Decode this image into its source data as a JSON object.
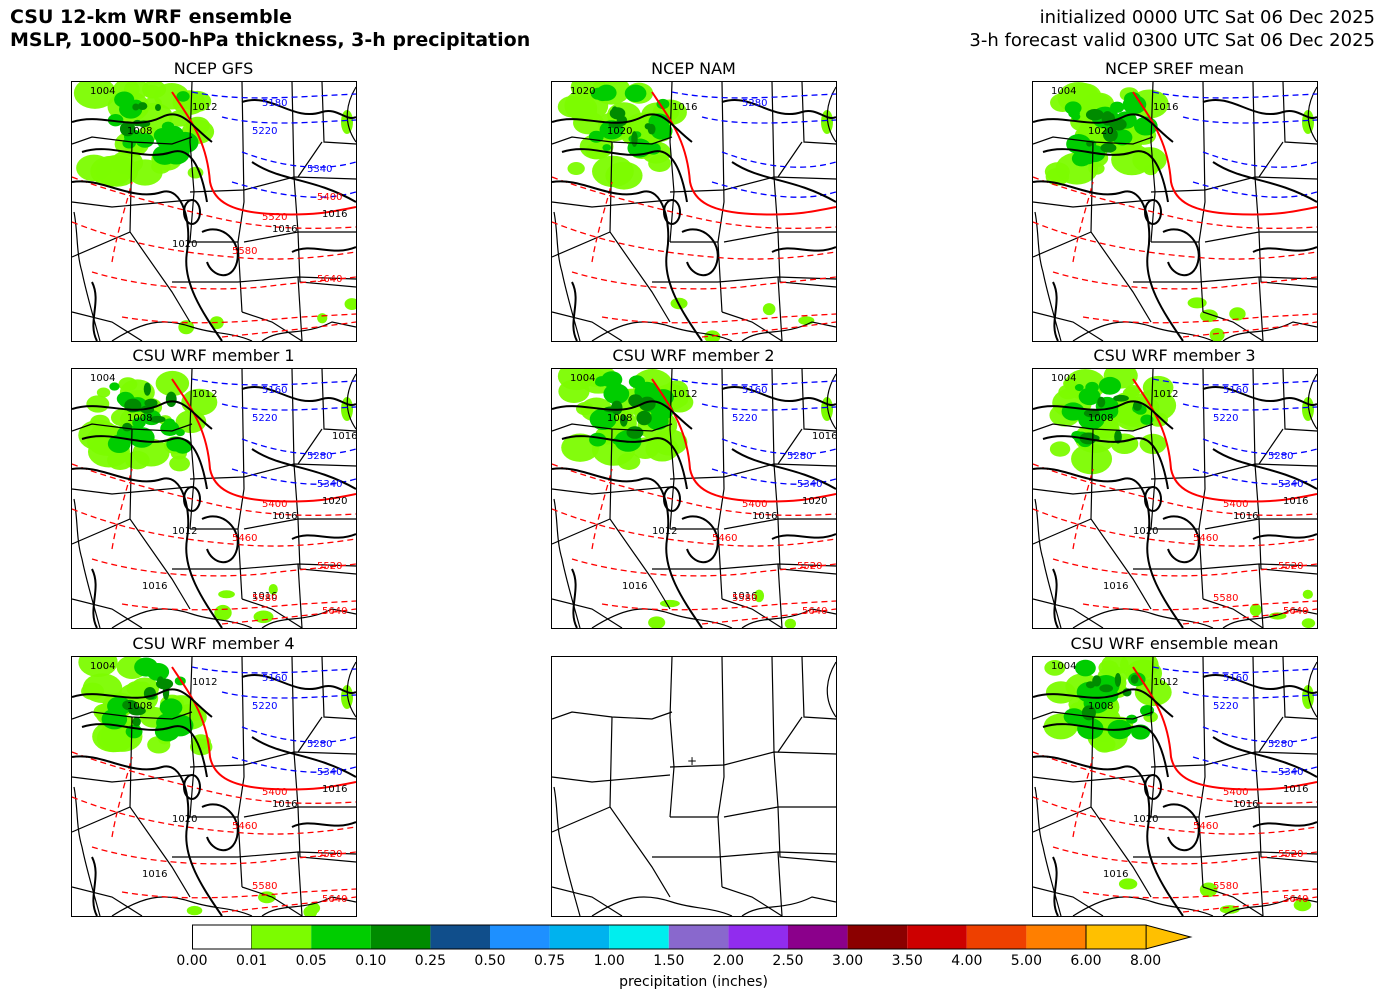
{
  "header": {
    "title_line1": "CSU 12-km WRF ensemble",
    "title_line2": "MSLP, 1000–500-hPa thickness, 3-h precipitation",
    "init_line": "initialized 0000 UTC Sat 06 Dec 2025",
    "valid_line": "3-h forecast valid 0300 UTC Sat 06 Dec 2025"
  },
  "panels": [
    {
      "title": "NCEP GFS",
      "mslp_labels": [
        "1004",
        "1008",
        "1012",
        "1016",
        "1020",
        "1016"
      ],
      "thickness_labels": [
        "5180",
        "5220",
        "5340",
        "5400",
        "5520",
        "5580",
        "5640"
      ]
    },
    {
      "title": "NCEP NAM",
      "mslp_labels": [
        "1020",
        "1020",
        "1016"
      ],
      "thickness_labels": [
        "5280"
      ]
    },
    {
      "title": "NCEP SREF mean",
      "mslp_labels": [
        "1004",
        "1020",
        "1016"
      ],
      "thickness_labels": []
    },
    {
      "title": "CSU WRF member 1",
      "mslp_labels": [
        "1004",
        "1008",
        "1012",
        "1016",
        "1012",
        "1020",
        "1016",
        "1016",
        "1016"
      ],
      "thickness_labels": [
        "5160",
        "5220",
        "5280",
        "5340",
        "5400",
        "5460",
        "5520",
        "5580",
        "5640"
      ]
    },
    {
      "title": "CSU WRF member 2",
      "mslp_labels": [
        "1004",
        "1008",
        "1012",
        "1016",
        "1012",
        "1020",
        "1016",
        "1016",
        "1016"
      ],
      "thickness_labels": [
        "5160",
        "5220",
        "5280",
        "5340",
        "5400",
        "5460",
        "5520",
        "5580",
        "5640"
      ]
    },
    {
      "title": "CSU WRF member 3",
      "mslp_labels": [
        "1004",
        "1008",
        "1012",
        "1016",
        "1020",
        "1016",
        "1016"
      ],
      "thickness_labels": [
        "5160",
        "5220",
        "5280",
        "5340",
        "5400",
        "5460",
        "5520",
        "5580",
        "5640"
      ]
    },
    {
      "title": "CSU WRF member 4",
      "mslp_labels": [
        "1004",
        "1008",
        "1012",
        "1016",
        "1020",
        "1016",
        "1016"
      ],
      "thickness_labels": [
        "5160",
        "5220",
        "5280",
        "5340",
        "5400",
        "5460",
        "5520",
        "5580",
        "5640"
      ]
    },
    {
      "title": "",
      "mslp_labels": [],
      "thickness_labels": []
    },
    {
      "title": "CSU WRF ensemble mean",
      "mslp_labels": [
        "1004",
        "1008",
        "1012",
        "1016",
        "1020",
        "1016",
        "1016"
      ],
      "thickness_labels": [
        "5160",
        "5220",
        "5280",
        "5340",
        "5400",
        "5460",
        "5520",
        "5580",
        "5640"
      ]
    }
  ],
  "colorbar": {
    "label": "precipitation (inches)",
    "ticks": [
      "0.00",
      "0.01",
      "0.05",
      "0.10",
      "0.25",
      "0.50",
      "0.75",
      "1.00",
      "1.50",
      "2.00",
      "2.50",
      "3.00",
      "3.50",
      "4.00",
      "5.00",
      "6.00",
      "8.00"
    ],
    "colors": [
      "#ffffff",
      "#7cfc00",
      "#00cd00",
      "#008b00",
      "#104e8b",
      "#1e90ff",
      "#00b2ee",
      "#00eeee",
      "#8968cd",
      "#912cee",
      "#8b008b",
      "#8b0000",
      "#cd0000",
      "#ee4000",
      "#ff7f00",
      "#ffc000"
    ]
  },
  "style": {
    "mslp_color": "#000000",
    "thickness_cold_color": "#0000ff",
    "thickness_warm_color": "#ff0000",
    "precip_light": "#7cfc00",
    "precip_mod": "#00cd00",
    "precip_heavy": "#008b00"
  }
}
